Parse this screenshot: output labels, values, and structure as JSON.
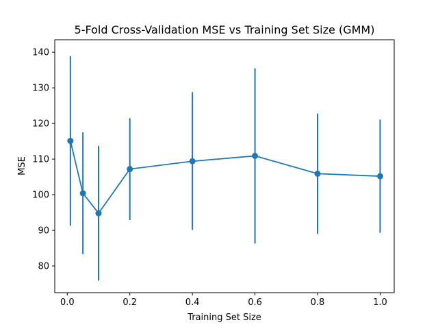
{
  "chart_data": {
    "type": "line",
    "title": "5-Fold Cross-Validation MSE vs Training Set Size (GMM)",
    "xlabel": "Training Set Size",
    "ylabel": "MSE",
    "xlim": [
      -0.04,
      1.045
    ],
    "ylim": [
      72.5,
      143.5
    ],
    "x_ticks": [
      0.0,
      0.2,
      0.4,
      0.6,
      0.8,
      1.0
    ],
    "x_tick_labels": [
      "0.0",
      "0.2",
      "0.4",
      "0.6",
      "0.8",
      "1.0"
    ],
    "y_ticks": [
      80,
      90,
      100,
      110,
      120,
      130,
      140
    ],
    "y_tick_labels": [
      "80",
      "90",
      "100",
      "110",
      "120",
      "130",
      "140"
    ],
    "grid": false,
    "series": [
      {
        "color": "#1f77b4",
        "x": [
          0.01,
          0.05,
          0.1,
          0.2,
          0.4,
          0.6,
          0.8,
          1.0
        ],
        "y": [
          115.1,
          100.4,
          94.8,
          107.2,
          109.4,
          110.9,
          105.9,
          105.2
        ],
        "err_low": [
          91.3,
          83.3,
          75.9,
          92.9,
          90.1,
          86.3,
          89.0,
          89.3
        ],
        "err_high": [
          138.9,
          117.5,
          113.7,
          121.5,
          128.8,
          135.5,
          122.8,
          121.1
        ]
      }
    ]
  }
}
